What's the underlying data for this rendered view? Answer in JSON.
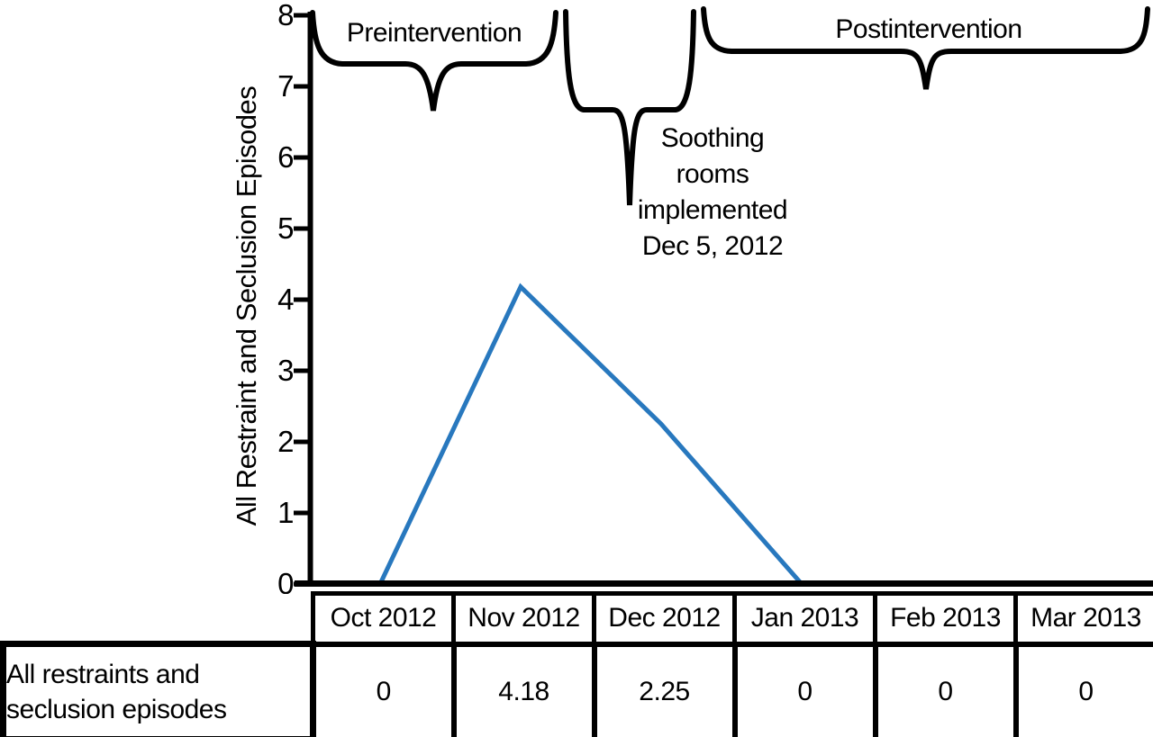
{
  "figure": {
    "ylabel": "All Restraint and Seclusion Episodes",
    "brace_labels": {
      "pre": "Preintervention",
      "post": "Postintervention"
    },
    "annotation": {
      "lines": [
        "Soothing",
        "rooms",
        "implemented",
        "Dec 5, 2012"
      ]
    }
  },
  "table": {
    "row_label": "All restraints and seclusion episodes",
    "columns": [
      {
        "header": "Oct 2012",
        "value": "0"
      },
      {
        "header": "Nov 2012",
        "value": "4.18"
      },
      {
        "header": "Dec 2012",
        "value": "2.25"
      },
      {
        "header": "Jan 2013",
        "value": "0"
      },
      {
        "header": "Feb 2013",
        "value": "0"
      },
      {
        "header": "Mar 2013",
        "value": "0"
      }
    ]
  },
  "colors": {
    "line": "#2878BE",
    "ink": "#000000"
  },
  "chart_data": {
    "type": "line",
    "categories": [
      "Oct 2012",
      "Nov 2012",
      "Dec 2012",
      "Jan 2013",
      "Feb 2013",
      "Mar 2013"
    ],
    "series": [
      {
        "name": "All restraints and seclusion episodes",
        "values": [
          0,
          4.18,
          2.25,
          0,
          0,
          0
        ]
      }
    ],
    "title": "",
    "xlabel": "",
    "ylabel": "All Restraint and Seclusion Episodes",
    "ylim": [
      0,
      8
    ],
    "yticks": [
      0,
      1,
      2,
      3,
      4,
      5,
      6,
      7,
      8
    ],
    "grid": false,
    "legend": false,
    "annotations": [
      {
        "text": "Preintervention",
        "span": [
          "Oct 2012",
          "Nov 2012"
        ]
      },
      {
        "text": "Soothing rooms implemented Dec 5, 2012",
        "span": [
          "Dec 2012"
        ]
      },
      {
        "text": "Postintervention",
        "span": [
          "Jan 2013",
          "Mar 2013"
        ]
      }
    ]
  }
}
